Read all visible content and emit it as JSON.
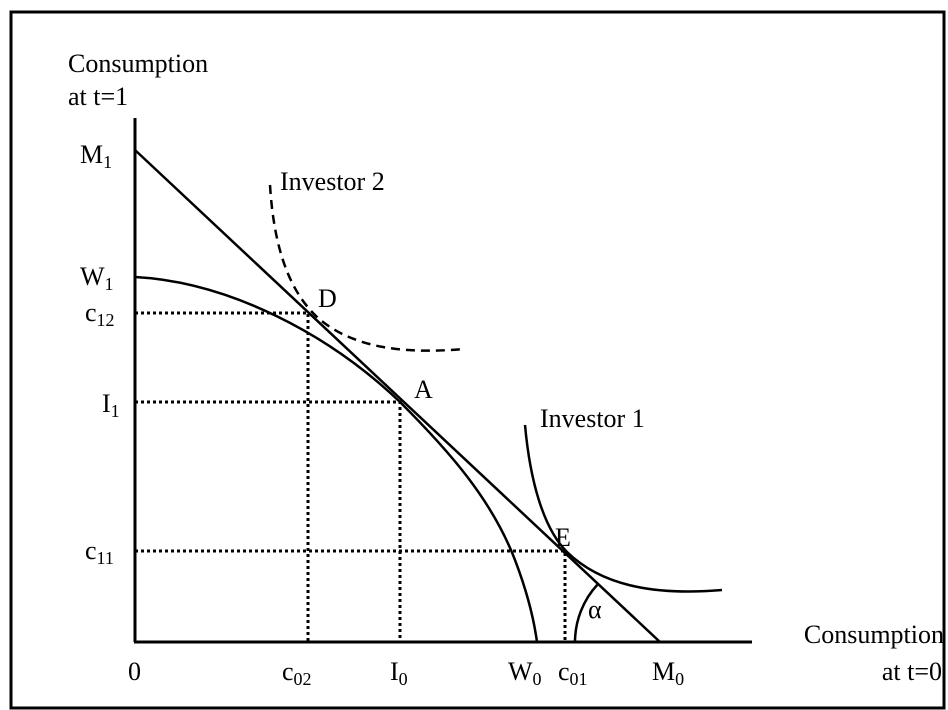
{
  "y_axis_label": [
    "Consumption",
    "at t=1"
  ],
  "x_axis_label": [
    "Consumption",
    "at t=0"
  ],
  "y_labels": [
    {
      "base": "M",
      "sub": "1"
    },
    {
      "base": "W",
      "sub": "1"
    },
    {
      "base": "c",
      "sub": "12"
    },
    {
      "base": "I",
      "sub": "1"
    },
    {
      "base": "c",
      "sub": "11"
    }
  ],
  "x_labels": [
    {
      "base": "0"
    },
    {
      "base": "c",
      "sub": "02"
    },
    {
      "base": "I",
      "sub": "0"
    },
    {
      "base": "W",
      "sub": "0"
    },
    {
      "base": "c",
      "sub": "01"
    },
    {
      "base": "M",
      "sub": "0"
    }
  ],
  "points": [
    "D",
    "A",
    "E"
  ],
  "curves": [
    "Investor 2",
    "Investor 1"
  ],
  "angle": "α"
}
